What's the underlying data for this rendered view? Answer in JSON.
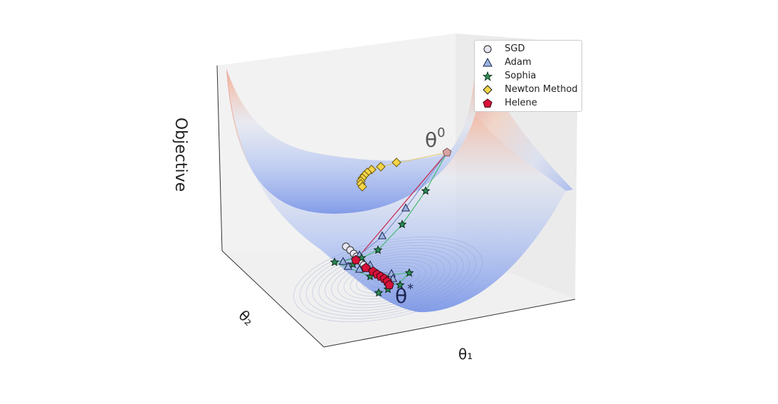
{
  "chart_data": {
    "type": "scatter",
    "subtype": "3d-surface-optimization-trajectories",
    "zlabel": "Objective",
    "xlabel": "θ₁",
    "ylabel": "θ₂",
    "annotations": [
      {
        "text": "θ",
        "sup": "0"
      },
      {
        "text": "θ",
        "sup": "*"
      }
    ],
    "surface_colormap": "coolwarm",
    "legend_position": "top-right",
    "series": [
      {
        "name": "SGD",
        "marker": "circle",
        "color": "#e8e6f2"
      },
      {
        "name": "Adam",
        "marker": "triangle",
        "color": "#9bb3e0"
      },
      {
        "name": "Sophia",
        "marker": "star",
        "color": "#2e8b57"
      },
      {
        "name": "Newton Method",
        "marker": "diamond",
        "color": "#f5d547"
      },
      {
        "name": "Helene",
        "marker": "pentagon",
        "color": "#d8123a"
      }
    ]
  }
}
